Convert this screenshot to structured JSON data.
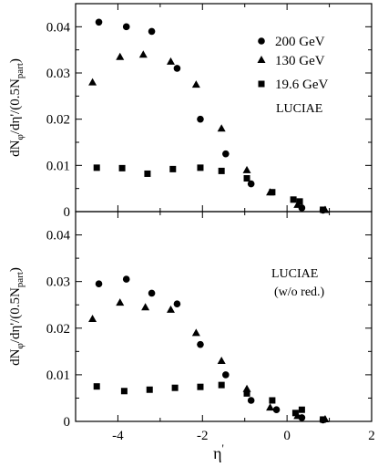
{
  "figure": {
    "ylabel_main": "dN",
    "ylabel_sub_phi": "φ",
    "ylabel_mid": "/dη",
    "ylabel_prime": "'",
    "ylabel_tail": "/(0.5N",
    "ylabel_sub_part": "part",
    "ylabel_close": ")",
    "xlabel_main": "η",
    "xlabel_prime": "'"
  },
  "chart_data": [
    {
      "type": "scatter",
      "panel": "top",
      "xlim": [
        -5,
        2
      ],
      "ylim": [
        0,
        0.045
      ],
      "xticks": [
        -4,
        -2,
        0,
        2
      ],
      "yticks": [
        0,
        0.01,
        0.02,
        0.03,
        0.04
      ],
      "ytick_labels": [
        "0",
        "0.01",
        "0.02",
        "0.03",
        "0.04"
      ],
      "annotation": "LUCIAE",
      "legend_position": "top-right",
      "series": [
        {
          "name": "200 GeV",
          "marker": "circle",
          "x": [
            -4.45,
            -3.8,
            -3.2,
            -2.6,
            -2.05,
            -1.45,
            -0.85,
            0.35,
            0.85
          ],
          "y": [
            0.041,
            0.04,
            0.039,
            0.031,
            0.02,
            0.0125,
            0.006,
            0.0008,
            0.0003
          ]
        },
        {
          "name": "130 GeV",
          "marker": "triangle",
          "x": [
            -4.6,
            -3.95,
            -3.4,
            -2.75,
            -2.15,
            -1.55,
            -0.95,
            -0.4,
            0.25,
            0.9
          ],
          "y": [
            0.028,
            0.0335,
            0.034,
            0.0325,
            0.0275,
            0.018,
            0.009,
            0.0042,
            0.0015,
            0.0004
          ]
        },
        {
          "name": "19.6 GeV",
          "marker": "square",
          "x": [
            -4.5,
            -3.9,
            -3.3,
            -2.7,
            -2.05,
            -1.55,
            -0.95,
            -0.35,
            0.15,
            0.3,
            0.85
          ],
          "y": [
            0.0095,
            0.0094,
            0.0082,
            0.0092,
            0.0095,
            0.0088,
            0.0072,
            0.0042,
            0.0026,
            0.0022,
            0.0004
          ]
        }
      ]
    },
    {
      "type": "scatter",
      "panel": "bottom",
      "xlim": [
        -5,
        2
      ],
      "ylim": [
        0,
        0.045
      ],
      "xticks": [
        -4,
        -2,
        0,
        2
      ],
      "xtick_labels": [
        "-4",
        "-2",
        "0",
        "2"
      ],
      "yticks": [
        0,
        0.01,
        0.02,
        0.03,
        0.04
      ],
      "ytick_labels": [
        "0",
        "0.01",
        "0.02",
        "0.03",
        "0.04"
      ],
      "annotation_line1": "LUCIAE",
      "annotation_line2": "(w/o red.)",
      "series": [
        {
          "name": "200 GeV",
          "marker": "circle",
          "x": [
            -4.45,
            -3.8,
            -3.2,
            -2.6,
            -2.05,
            -1.45,
            -0.85,
            -0.25,
            0.35,
            0.85
          ],
          "y": [
            0.0295,
            0.0305,
            0.0275,
            0.0252,
            0.0165,
            0.01,
            0.0045,
            0.0025,
            0.0008,
            0.0003
          ]
        },
        {
          "name": "130 GeV",
          "marker": "triangle",
          "x": [
            -4.6,
            -3.95,
            -3.35,
            -2.75,
            -2.15,
            -1.55,
            -0.95,
            -0.4,
            0.25,
            0.9
          ],
          "y": [
            0.022,
            0.0255,
            0.0245,
            0.024,
            0.019,
            0.013,
            0.007,
            0.003,
            0.0012,
            0.0005
          ]
        },
        {
          "name": "19.6 GeV",
          "marker": "square",
          "x": [
            -4.5,
            -3.85,
            -3.25,
            -2.65,
            -2.05,
            -1.55,
            -0.95,
            -0.35,
            0.2,
            0.35,
            0.85
          ],
          "y": [
            0.0075,
            0.0065,
            0.0068,
            0.0072,
            0.0074,
            0.0078,
            0.006,
            0.0045,
            0.0018,
            0.0025,
            0.0004
          ]
        }
      ]
    }
  ]
}
